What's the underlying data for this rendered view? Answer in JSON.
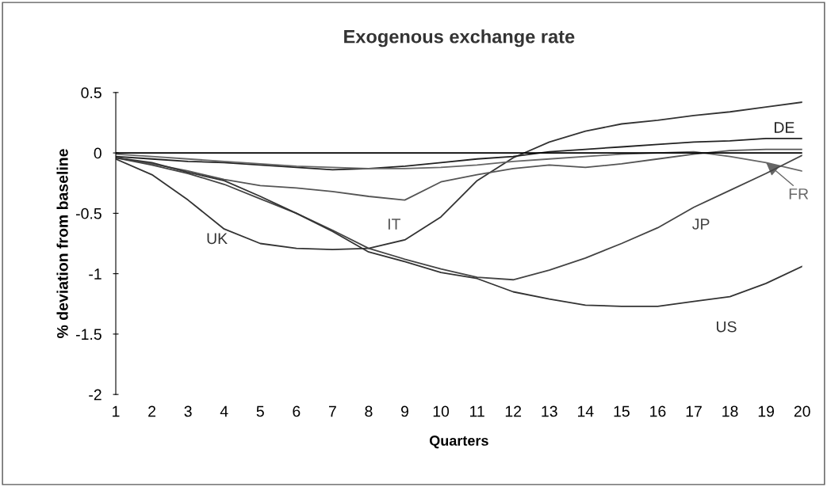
{
  "chart_data": {
    "type": "line",
    "title": "Exogenous exchange rate",
    "xlabel": "Quarters",
    "ylabel": "% deviation from baseline",
    "x": [
      1,
      2,
      3,
      4,
      5,
      6,
      7,
      8,
      9,
      10,
      11,
      12,
      13,
      14,
      15,
      16,
      17,
      18,
      19,
      20
    ],
    "xlim": [
      1,
      20
    ],
    "xticks": [
      1,
      2,
      3,
      4,
      5,
      6,
      7,
      8,
      9,
      10,
      11,
      12,
      13,
      14,
      15,
      16,
      17,
      18,
      19,
      20
    ],
    "ylim": [
      -2,
      0.5
    ],
    "yticks": [
      -2,
      -1.5,
      -1,
      -0.5,
      0,
      0.5
    ],
    "grid": false,
    "marker": "none",
    "series": [
      {
        "name": "UK",
        "color": "#333333",
        "values": [
          -0.05,
          -0.18,
          -0.39,
          -0.63,
          -0.75,
          -0.79,
          -0.8,
          -0.79,
          -0.72,
          -0.53,
          -0.23,
          -0.04,
          0.09,
          0.18,
          0.24,
          0.27,
          0.31,
          0.34,
          0.38,
          0.42
        ]
      },
      {
        "name": "IT",
        "color": "#555555",
        "values": [
          -0.04,
          -0.09,
          -0.15,
          -0.22,
          -0.27,
          -0.29,
          -0.32,
          -0.36,
          -0.39,
          -0.24,
          -0.18,
          -0.13,
          -0.1,
          -0.12,
          -0.09,
          -0.05,
          -0.01,
          0.02,
          0.03,
          0.03
        ]
      },
      {
        "name": "DE",
        "color": "#222222",
        "values": [
          -0.03,
          -0.05,
          -0.07,
          -0.08,
          -0.1,
          -0.12,
          -0.14,
          -0.13,
          -0.11,
          -0.08,
          -0.05,
          -0.03,
          0.01,
          0.03,
          0.05,
          0.07,
          0.09,
          0.1,
          0.12,
          0.12
        ]
      },
      {
        "name": "FR",
        "color": "#666666",
        "values": [
          -0.01,
          -0.03,
          -0.05,
          -0.07,
          -0.09,
          -0.11,
          -0.12,
          -0.13,
          -0.13,
          -0.12,
          -0.1,
          -0.07,
          -0.05,
          -0.03,
          -0.01,
          0,
          0.01,
          -0.03,
          -0.08,
          -0.15
        ]
      },
      {
        "name": "JP",
        "color": "#444444",
        "values": [
          -0.04,
          -0.1,
          -0.17,
          -0.26,
          -0.38,
          -0.5,
          -0.64,
          -0.79,
          -0.88,
          -0.96,
          -1.03,
          -1.05,
          -0.97,
          -0.87,
          -0.75,
          -0.62,
          -0.45,
          -0.31,
          -0.17,
          -0.02
        ]
      },
      {
        "name": "US",
        "color": "#333333",
        "values": [
          -0.04,
          -0.08,
          -0.16,
          -0.23,
          -0.36,
          -0.5,
          -0.65,
          -0.82,
          -0.9,
          -0.99,
          -1.04,
          -1.15,
          -1.21,
          -1.26,
          -1.27,
          -1.27,
          -1.23,
          -1.19,
          -1.08,
          -0.94
        ]
      }
    ],
    "ref_lines": [
      {
        "axis": "y",
        "value": 0,
        "color": "#000000"
      }
    ]
  }
}
